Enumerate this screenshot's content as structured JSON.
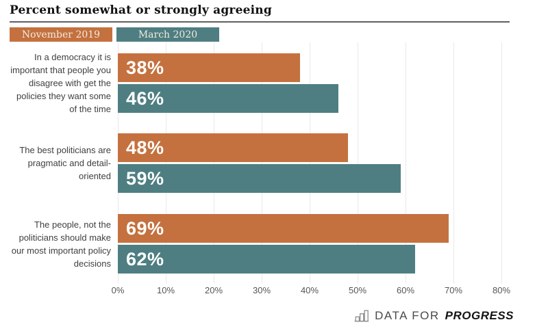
{
  "title": "Percent somewhat or strongly agreeing",
  "legend": [
    {
      "label": "November 2019",
      "color": "#C4713F"
    },
    {
      "label": "March 2020",
      "color": "#4E7E82"
    }
  ],
  "chart_data": {
    "type": "bar",
    "orientation": "horizontal",
    "title": "Percent somewhat or strongly agreeing",
    "categories": [
      "In a democracy it is important that people you disagree with get the policies they want some of the time",
      "The best politicians are pragmatic and detail-oriented",
      "The people, not the politicians should make our most important policy decisions"
    ],
    "series": [
      {
        "name": "November 2019",
        "color": "#C4713F",
        "values": [
          38,
          48,
          69
        ]
      },
      {
        "name": "March 2020",
        "color": "#4E7E82",
        "values": [
          46,
          59,
          62
        ]
      }
    ],
    "value_labels": [
      [
        "38%",
        "46%"
      ],
      [
        "48%",
        "59%"
      ],
      [
        "69%",
        "62%"
      ]
    ],
    "xticks": [
      "0%",
      "10%",
      "20%",
      "30%",
      "40%",
      "50%",
      "60%",
      "70%",
      "80%"
    ],
    "xlim": [
      0,
      80
    ],
    "grid": "vertical",
    "legend_position": "top-left"
  },
  "footer": {
    "logo_icon": "bar-chart-icon",
    "logo_text_light": "DATA FOR",
    "logo_text_bold": "PROGRESS"
  }
}
